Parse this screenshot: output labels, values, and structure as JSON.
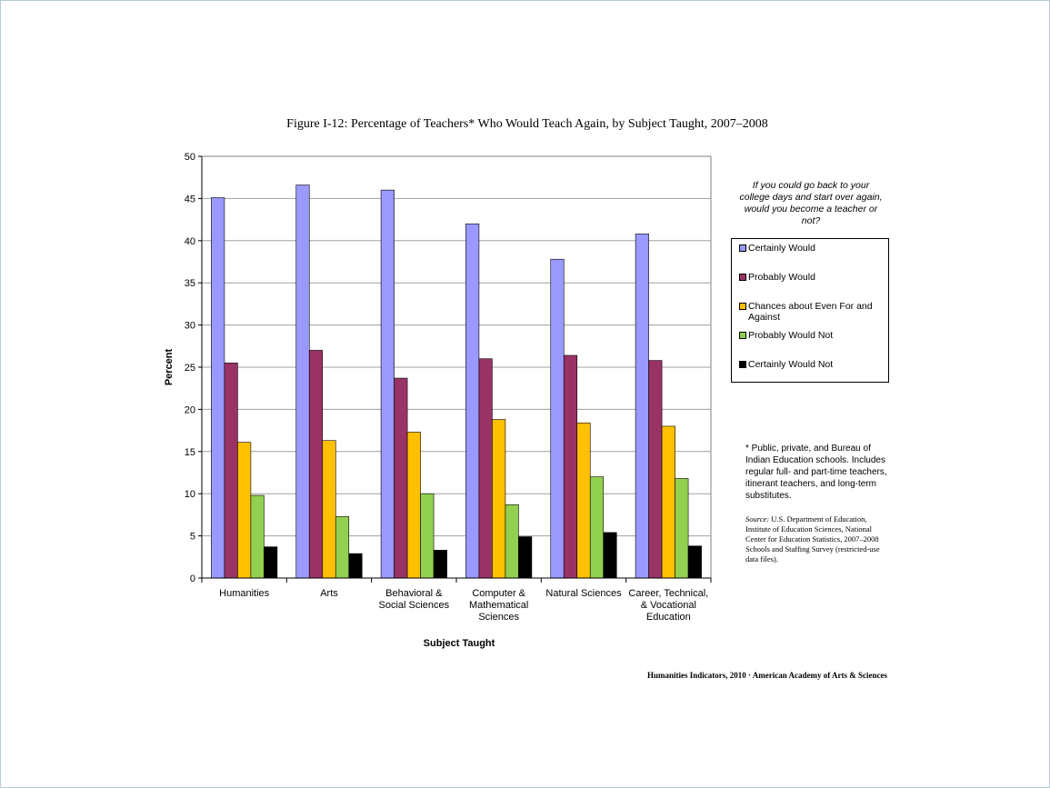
{
  "page": {
    "footnote": "* Public, private, and Bureau of Indian Education schools. Includes regular full- and part-time teachers, itinerant teachers, and long-term substitutes.",
    "source_lead": "Source:",
    "source_text": "U.S. Department of Education, Institute of Education Sciences, National Center for Education Statistics, 2007–2008 Schools and Staffing Survey (restricted-use data files).",
    "credit": "Humanities Indicators, 2010 · American Academy of Arts & Sciences"
  },
  "legend": {
    "question": "If you could go back to your college days and start over again, would you become a teacher or not?"
  },
  "chart_data": {
    "type": "bar",
    "title": "Figure I-12: Percentage of Teachers* Who Would Teach Again, by Subject Taught, 2007–2008",
    "xlabel": "Subject Taught",
    "ylabel": "Percent",
    "ylim": [
      0,
      50
    ],
    "yticks": [
      0,
      5,
      10,
      15,
      20,
      25,
      30,
      35,
      40,
      45,
      50
    ],
    "grid": true,
    "legend_position": "right",
    "categories": [
      "Humanities",
      "Arts",
      "Behavioral & Social Sciences",
      "Computer & Mathematical Sciences",
      "Natural Sciences",
      "Career, Technical, & Vocational Education"
    ],
    "category_lines": [
      [
        "Humanities"
      ],
      [
        "Arts"
      ],
      [
        "Behavioral &",
        "Social Sciences"
      ],
      [
        "Computer &",
        "Mathematical",
        "Sciences"
      ],
      [
        "Natural Sciences"
      ],
      [
        "Career, Technical,",
        "& Vocational",
        "Education"
      ]
    ],
    "series": [
      {
        "name": "Certainly Would",
        "color": "#9999ff",
        "values": [
          45.1,
          46.6,
          46.0,
          42.0,
          37.8,
          40.8
        ]
      },
      {
        "name": "Probably Would",
        "color": "#993366",
        "values": [
          25.5,
          27.0,
          23.7,
          26.0,
          26.4,
          25.8
        ]
      },
      {
        "name": "Chances about Even For and Against",
        "name_lines": [
          "Chances about Even For and",
          "Against"
        ],
        "color": "#ffc000",
        "values": [
          16.1,
          16.3,
          17.3,
          18.8,
          18.4,
          18.0
        ]
      },
      {
        "name": "Probably Would Not",
        "color": "#92d050",
        "values": [
          9.8,
          7.3,
          10.0,
          8.7,
          12.0,
          11.8
        ]
      },
      {
        "name": "Certainly Would Not",
        "color": "#000000",
        "values": [
          3.7,
          2.9,
          3.3,
          4.9,
          5.4,
          3.8
        ]
      }
    ]
  }
}
